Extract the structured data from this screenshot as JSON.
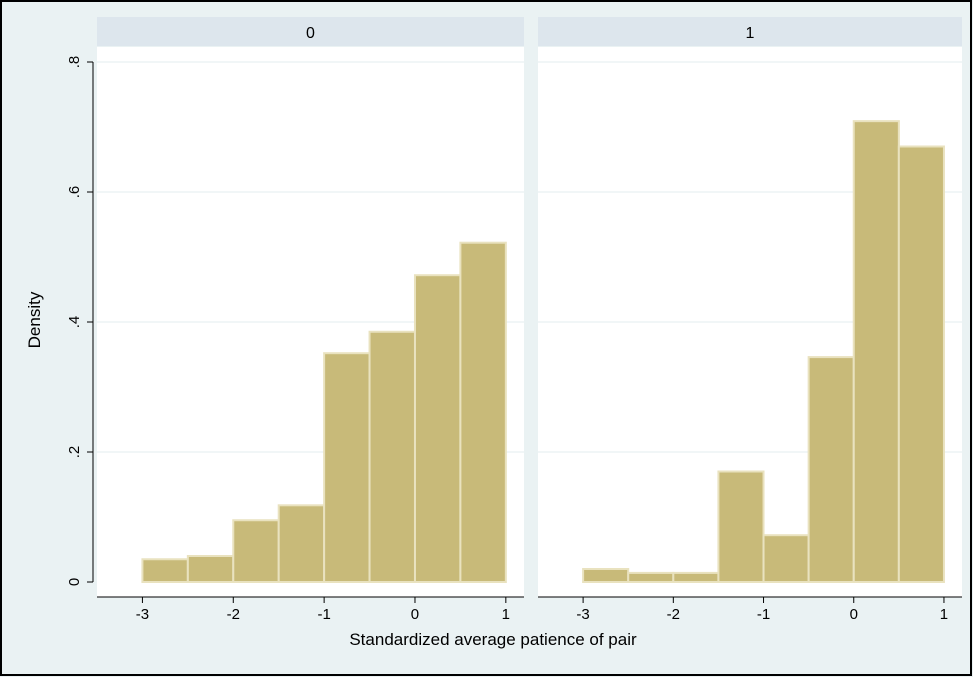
{
  "colors": {
    "bar_fill": "#C8BA79",
    "bar_stroke": "#E9E2BF",
    "strip_fill": "#DDE6ED",
    "plot_region": "#FFFFFF",
    "outer_bg": "#EAF2F3",
    "gridline": "#E3ECEF",
    "frame": "#000000"
  },
  "chart_data": {
    "type": "bar",
    "subtype": "histogram",
    "xlabel": "Standardized average patience of pair",
    "ylabel": "Density",
    "xlim": [
      -3.5,
      1.2
    ],
    "ylim": [
      0,
      0.8
    ],
    "x_ticks": [
      -3,
      -2,
      -1,
      0,
      1
    ],
    "x_tick_labels": [
      "-3",
      "-2",
      "-1",
      "0",
      "1"
    ],
    "y_ticks": [
      0,
      0.2,
      0.4,
      0.6,
      0.8
    ],
    "y_tick_labels": [
      "0",
      ".2",
      ".4",
      ".6",
      ".8"
    ],
    "gridlines": true,
    "panels": [
      {
        "label": "0",
        "bins": [
          {
            "x0": -3.0,
            "x1": -2.5,
            "density": 0.035
          },
          {
            "x0": -2.5,
            "x1": -2.0,
            "density": 0.04
          },
          {
            "x0": -2.0,
            "x1": -1.5,
            "density": 0.095
          },
          {
            "x0": -1.5,
            "x1": -1.0,
            "density": 0.118
          },
          {
            "x0": -1.0,
            "x1": -0.5,
            "density": 0.352
          },
          {
            "x0": -0.5,
            "x1": 0.0,
            "density": 0.385
          },
          {
            "x0": 0.0,
            "x1": 0.5,
            "density": 0.472
          },
          {
            "x0": 0.5,
            "x1": 1.0,
            "density": 0.522
          }
        ]
      },
      {
        "label": "1",
        "bins": [
          {
            "x0": -3.0,
            "x1": -2.5,
            "density": 0.02
          },
          {
            "x0": -2.5,
            "x1": -2.0,
            "density": 0.014
          },
          {
            "x0": -2.0,
            "x1": -1.5,
            "density": 0.014
          },
          {
            "x0": -1.5,
            "x1": -1.0,
            "density": 0.17
          },
          {
            "x0": -1.0,
            "x1": -0.5,
            "density": 0.072
          },
          {
            "x0": -0.5,
            "x1": 0.0,
            "density": 0.346
          },
          {
            "x0": 0.0,
            "x1": 0.5,
            "density": 0.709
          },
          {
            "x0": 0.5,
            "x1": 1.0,
            "density": 0.67
          }
        ]
      }
    ]
  }
}
